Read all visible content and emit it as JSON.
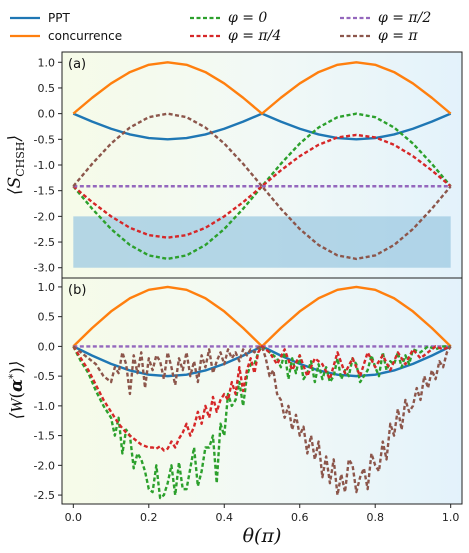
{
  "legend": {
    "items": [
      {
        "key": "PPT",
        "label": "PPT",
        "color": "#1f77b4",
        "style": "solid",
        "math": false
      },
      {
        "key": "concurrence",
        "label": "concurrence",
        "color": "#ff7f0e",
        "style": "solid",
        "math": false
      },
      {
        "key": "phi0",
        "label": "φ = 0",
        "color": "#2ca02c",
        "style": "dashed",
        "math": true
      },
      {
        "key": "phipi4",
        "label": "φ = π/4",
        "color": "#d62728",
        "style": "dashed",
        "math": true
      },
      {
        "key": "phipi2",
        "label": "φ = π/2",
        "color": "#9467bd",
        "style": "dashed",
        "math": true
      },
      {
        "key": "phipi",
        "label": "φ = π",
        "color": "#8c564b",
        "style": "dashed",
        "math": true
      }
    ]
  },
  "chart_data": [
    {
      "type": "line",
      "panel_label": "(a)",
      "ylabel": "⟨S_CHSH⟩",
      "xlabel": "",
      "xlim": [
        -0.03,
        1.03
      ],
      "ylim": [
        -3.2,
        1.2
      ],
      "yticks": [
        -3.0,
        -2.5,
        -2.0,
        -1.5,
        -1.0,
        -0.5,
        0.0,
        0.5,
        1.0
      ],
      "ytick_labels": [
        "-3.0",
        "-2.5",
        "-2.0",
        "-1.5",
        "-1.0",
        "-0.5",
        "0.0",
        "0.5",
        "1.0"
      ],
      "shaded_region": {
        "x": [
          0,
          1
        ],
        "y": [
          -3.0,
          -2.0
        ],
        "color": "#9ecae1"
      },
      "series": [
        {
          "key": "PPT",
          "x": [
            0,
            0.05,
            0.1,
            0.15,
            0.2,
            0.25,
            0.3,
            0.35,
            0.4,
            0.45,
            0.5,
            0.55,
            0.6,
            0.65,
            0.7,
            0.75,
            0.8,
            0.85,
            0.9,
            0.95,
            1.0
          ],
          "y": [
            0,
            -0.155,
            -0.294,
            -0.405,
            -0.476,
            -0.5,
            -0.476,
            -0.405,
            -0.294,
            -0.155,
            0,
            -0.155,
            -0.294,
            -0.405,
            -0.476,
            -0.5,
            -0.476,
            -0.405,
            -0.294,
            -0.155,
            0
          ]
        },
        {
          "key": "concurrence",
          "x": [
            0,
            0.05,
            0.1,
            0.15,
            0.2,
            0.25,
            0.3,
            0.35,
            0.4,
            0.45,
            0.5,
            0.55,
            0.6,
            0.65,
            0.7,
            0.75,
            0.8,
            0.85,
            0.9,
            0.95,
            1.0
          ],
          "y": [
            0,
            0.309,
            0.588,
            0.809,
            0.951,
            1.0,
            0.951,
            0.809,
            0.588,
            0.309,
            0,
            0.309,
            0.588,
            0.809,
            0.951,
            1.0,
            0.951,
            0.809,
            0.588,
            0.309,
            0
          ]
        },
        {
          "key": "phi0",
          "x": [
            0,
            0.05,
            0.1,
            0.15,
            0.2,
            0.25,
            0.3,
            0.35,
            0.4,
            0.45,
            0.5,
            0.55,
            0.6,
            0.65,
            0.7,
            0.75,
            0.8,
            0.85,
            0.9,
            0.95,
            1.0
          ],
          "y": [
            -1.414,
            -1.852,
            -2.246,
            -2.558,
            -2.76,
            -2.828,
            -2.76,
            -2.558,
            -2.246,
            -1.852,
            -1.414,
            -0.977,
            -0.582,
            -0.27,
            -0.069,
            0,
            -0.069,
            -0.27,
            -0.582,
            -0.977,
            -1.414
          ]
        },
        {
          "key": "phipi4",
          "x": [
            0,
            0.05,
            0.1,
            0.15,
            0.2,
            0.25,
            0.3,
            0.35,
            0.4,
            0.45,
            0.5,
            0.55,
            0.6,
            0.65,
            0.7,
            0.75,
            0.8,
            0.85,
            0.9,
            0.95,
            1.0
          ],
          "y": [
            -1.414,
            -1.723,
            -2.0,
            -2.223,
            -2.365,
            -2.414,
            -2.365,
            -2.223,
            -2.0,
            -1.723,
            -1.414,
            -1.105,
            -0.828,
            -0.606,
            -0.463,
            -0.414,
            -0.463,
            -0.606,
            -0.828,
            -1.105,
            -1.414
          ]
        },
        {
          "key": "phipi2",
          "x": [
            0,
            1.0
          ],
          "y": [
            -1.414,
            -1.414
          ]
        },
        {
          "key": "phipi",
          "x": [
            0,
            0.05,
            0.1,
            0.15,
            0.2,
            0.25,
            0.3,
            0.35,
            0.4,
            0.45,
            0.5,
            0.55,
            0.6,
            0.65,
            0.7,
            0.75,
            0.8,
            0.85,
            0.9,
            0.95,
            1.0
          ],
          "y": [
            -1.414,
            -0.977,
            -0.582,
            -0.27,
            -0.069,
            0,
            -0.069,
            -0.27,
            -0.582,
            -0.977,
            -1.414,
            -1.852,
            -2.246,
            -2.558,
            -2.76,
            -2.828,
            -2.76,
            -2.558,
            -2.246,
            -1.852,
            -1.414
          ]
        }
      ]
    },
    {
      "type": "line",
      "panel_label": "(b)",
      "ylabel": "⟨W(α*)⟩",
      "xlabel": "θ(π)",
      "xlim": [
        -0.03,
        1.03
      ],
      "ylim": [
        -2.65,
        1.15
      ],
      "xticks": [
        0.0,
        0.2,
        0.4,
        0.6,
        0.8,
        1.0
      ],
      "xtick_labels": [
        "0.0",
        "0.2",
        "0.4",
        "0.6",
        "0.8",
        "1.0"
      ],
      "yticks": [
        -2.5,
        -2.0,
        -1.5,
        -1.0,
        -0.5,
        0.0,
        0.5,
        1.0
      ],
      "ytick_labels": [
        "-2.5",
        "-2.0",
        "-1.5",
        "-1.0",
        "-0.5",
        "0.0",
        "0.5",
        "1.0"
      ],
      "series": [
        {
          "key": "PPT",
          "x": [
            0,
            0.05,
            0.1,
            0.15,
            0.2,
            0.25,
            0.3,
            0.35,
            0.4,
            0.45,
            0.5,
            0.55,
            0.6,
            0.65,
            0.7,
            0.75,
            0.8,
            0.85,
            0.9,
            0.95,
            1.0
          ],
          "y": [
            0,
            -0.155,
            -0.294,
            -0.405,
            -0.476,
            -0.5,
            -0.476,
            -0.405,
            -0.294,
            -0.155,
            0,
            -0.155,
            -0.294,
            -0.405,
            -0.476,
            -0.5,
            -0.476,
            -0.405,
            -0.294,
            -0.155,
            0
          ]
        },
        {
          "key": "concurrence",
          "x": [
            0,
            0.05,
            0.1,
            0.15,
            0.2,
            0.25,
            0.3,
            0.35,
            0.4,
            0.45,
            0.5,
            0.55,
            0.6,
            0.65,
            0.7,
            0.75,
            0.8,
            0.85,
            0.9,
            0.95,
            1.0
          ],
          "y": [
            0,
            0.309,
            0.588,
            0.809,
            0.951,
            1.0,
            0.951,
            0.809,
            0.588,
            0.309,
            0,
            0.309,
            0.588,
            0.809,
            0.951,
            1.0,
            0.951,
            0.809,
            0.588,
            0.309,
            0
          ]
        },
        {
          "key": "phipi2",
          "x": [
            0,
            1.0
          ],
          "y": [
            0,
            0
          ]
        },
        {
          "key": "phi0",
          "x": [
            0,
            0.02,
            0.04,
            0.06,
            0.08,
            0.1,
            0.11,
            0.12,
            0.13,
            0.14,
            0.15,
            0.16,
            0.17,
            0.18,
            0.19,
            0.2,
            0.21,
            0.22,
            0.23,
            0.24,
            0.25,
            0.26,
            0.27,
            0.28,
            0.29,
            0.3,
            0.31,
            0.32,
            0.33,
            0.34,
            0.35,
            0.36,
            0.37,
            0.38,
            0.39,
            0.4,
            0.41,
            0.42,
            0.43,
            0.44,
            0.45,
            0.46,
            0.47,
            0.48,
            0.49,
            0.5,
            0.52,
            0.54,
            0.55,
            0.56,
            0.57,
            0.58,
            0.59,
            0.6,
            0.61,
            0.62,
            0.63,
            0.64,
            0.65,
            0.66,
            0.67,
            0.68,
            0.69,
            0.7,
            0.71,
            0.72,
            0.73,
            0.74,
            0.75,
            0.76,
            0.77,
            0.78,
            0.79,
            0.8,
            0.81,
            0.82,
            0.83,
            0.84,
            0.85,
            0.86,
            0.87,
            0.88,
            0.89,
            0.9,
            0.92,
            0.94,
            0.96,
            0.98,
            1.0
          ],
          "y": [
            0,
            -0.25,
            -0.45,
            -0.75,
            -1.0,
            -1.2,
            -1.5,
            -1.2,
            -1.8,
            -1.4,
            -1.5,
            -2.05,
            -1.8,
            -1.9,
            -2.1,
            -2.4,
            -2.45,
            -2.0,
            -2.55,
            -2.5,
            -2.3,
            -2.0,
            -2.5,
            -1.95,
            -2.4,
            -2.4,
            -2.05,
            -1.7,
            -2.35,
            -2.1,
            -1.7,
            -1.7,
            -1.5,
            -2.3,
            -1.3,
            -1.5,
            -0.8,
            -1.0,
            -0.9,
            -0.6,
            -1.0,
            -0.5,
            -0.3,
            -0.3,
            -0.1,
            0,
            -0.1,
            -0.2,
            -0.35,
            -0.1,
            -0.55,
            -0.2,
            -0.45,
            -0.15,
            -0.55,
            -0.45,
            -0.25,
            -0.6,
            -0.3,
            -0.55,
            -0.35,
            -0.6,
            -0.5,
            -0.2,
            -0.55,
            -0.4,
            -0.5,
            -0.2,
            -0.3,
            -0.6,
            -0.5,
            -0.4,
            -0.15,
            -0.35,
            -0.5,
            -0.1,
            -0.4,
            -0.25,
            -0.3,
            -0.1,
            -0.35,
            -0.15,
            -0.3,
            -0.05,
            -0.1,
            0,
            -0.05,
            0,
            0
          ]
        },
        {
          "key": "phipi4",
          "x": [
            0,
            0.02,
            0.04,
            0.06,
            0.08,
            0.1,
            0.12,
            0.14,
            0.16,
            0.18,
            0.2,
            0.21,
            0.22,
            0.23,
            0.24,
            0.25,
            0.26,
            0.27,
            0.28,
            0.29,
            0.3,
            0.31,
            0.32,
            0.33,
            0.34,
            0.35,
            0.36,
            0.37,
            0.38,
            0.39,
            0.4,
            0.41,
            0.42,
            0.43,
            0.44,
            0.45,
            0.46,
            0.47,
            0.48,
            0.49,
            0.5,
            0.52,
            0.54,
            0.56,
            0.58,
            0.6,
            0.62,
            0.64,
            0.66,
            0.68,
            0.7,
            0.72,
            0.74,
            0.76,
            0.78,
            0.8,
            0.82,
            0.84,
            0.86,
            0.88,
            0.9,
            0.92,
            0.94,
            0.96,
            0.98,
            1.0
          ],
          "y": [
            0,
            -0.2,
            -0.4,
            -0.65,
            -0.9,
            -1.1,
            -1.3,
            -1.45,
            -1.55,
            -1.65,
            -1.7,
            -1.7,
            -1.72,
            -1.68,
            -1.75,
            -1.72,
            -1.6,
            -1.7,
            -1.55,
            -1.45,
            -1.3,
            -1.5,
            -1.35,
            -1.1,
            -1.3,
            -1.0,
            -1.2,
            -0.85,
            -1.1,
            -0.9,
            -0.8,
            -0.9,
            -0.6,
            -0.8,
            -0.35,
            -0.75,
            -0.4,
            -0.2,
            -0.45,
            -0.1,
            0,
            -0.1,
            -0.3,
            -0.05,
            -0.4,
            -0.15,
            -0.5,
            -0.2,
            -0.3,
            -0.55,
            -0.1,
            -0.45,
            -0.2,
            -0.5,
            -0.1,
            -0.35,
            -0.15,
            -0.4,
            -0.1,
            -0.3,
            -0.05,
            -0.2,
            -0.1,
            0,
            -0.05,
            0
          ]
        },
        {
          "key": "phipi",
          "x": [
            0,
            0.02,
            0.04,
            0.06,
            0.08,
            0.1,
            0.11,
            0.12,
            0.13,
            0.14,
            0.15,
            0.16,
            0.17,
            0.18,
            0.19,
            0.2,
            0.21,
            0.22,
            0.23,
            0.24,
            0.25,
            0.26,
            0.27,
            0.28,
            0.29,
            0.3,
            0.31,
            0.32,
            0.33,
            0.34,
            0.35,
            0.36,
            0.37,
            0.38,
            0.39,
            0.4,
            0.41,
            0.42,
            0.43,
            0.44,
            0.45,
            0.46,
            0.47,
            0.48,
            0.49,
            0.5,
            0.51,
            0.52,
            0.53,
            0.54,
            0.55,
            0.56,
            0.57,
            0.58,
            0.59,
            0.6,
            0.61,
            0.62,
            0.63,
            0.64,
            0.65,
            0.66,
            0.67,
            0.68,
            0.69,
            0.7,
            0.71,
            0.72,
            0.73,
            0.74,
            0.75,
            0.76,
            0.77,
            0.78,
            0.79,
            0.8,
            0.81,
            0.82,
            0.83,
            0.84,
            0.85,
            0.86,
            0.87,
            0.88,
            0.89,
            0.9,
            0.91,
            0.92,
            0.93,
            0.94,
            0.95,
            0.96,
            0.97,
            0.98,
            0.99,
            1.0
          ],
          "y": [
            0,
            -0.1,
            -0.2,
            -0.3,
            -0.5,
            -0.6,
            -0.35,
            -0.45,
            -0.1,
            -0.3,
            -0.8,
            -0.15,
            -0.45,
            -0.1,
            -0.7,
            -0.2,
            -0.4,
            -0.15,
            -0.25,
            -0.55,
            -0.1,
            -0.35,
            -0.65,
            -0.2,
            -0.4,
            -0.1,
            -0.5,
            -0.25,
            -0.6,
            -0.15,
            -0.35,
            -0.05,
            -0.45,
            -0.25,
            -0.1,
            -0.3,
            -0.05,
            -0.2,
            -0.1,
            -0.25,
            -0.05,
            -0.15,
            -0.05,
            -0.1,
            -0.02,
            0,
            -0.2,
            -0.5,
            -0.4,
            -0.8,
            -0.9,
            -1.2,
            -1.0,
            -1.4,
            -1.15,
            -1.5,
            -1.35,
            -1.8,
            -1.5,
            -1.9,
            -1.6,
            -2.2,
            -1.85,
            -2.3,
            -1.9,
            -2.5,
            -2.15,
            -2.45,
            -1.9,
            -2.0,
            -2.45,
            -2.2,
            -2.05,
            -2.4,
            -1.8,
            -2.0,
            -2.1,
            -1.6,
            -1.9,
            -1.3,
            -1.5,
            -1.05,
            -1.4,
            -0.9,
            -1.1,
            -1.0,
            -0.7,
            -0.9,
            -0.5,
            -0.7,
            -0.4,
            -0.55,
            -0.25,
            -0.35,
            -0.1,
            0
          ]
        }
      ]
    }
  ]
}
